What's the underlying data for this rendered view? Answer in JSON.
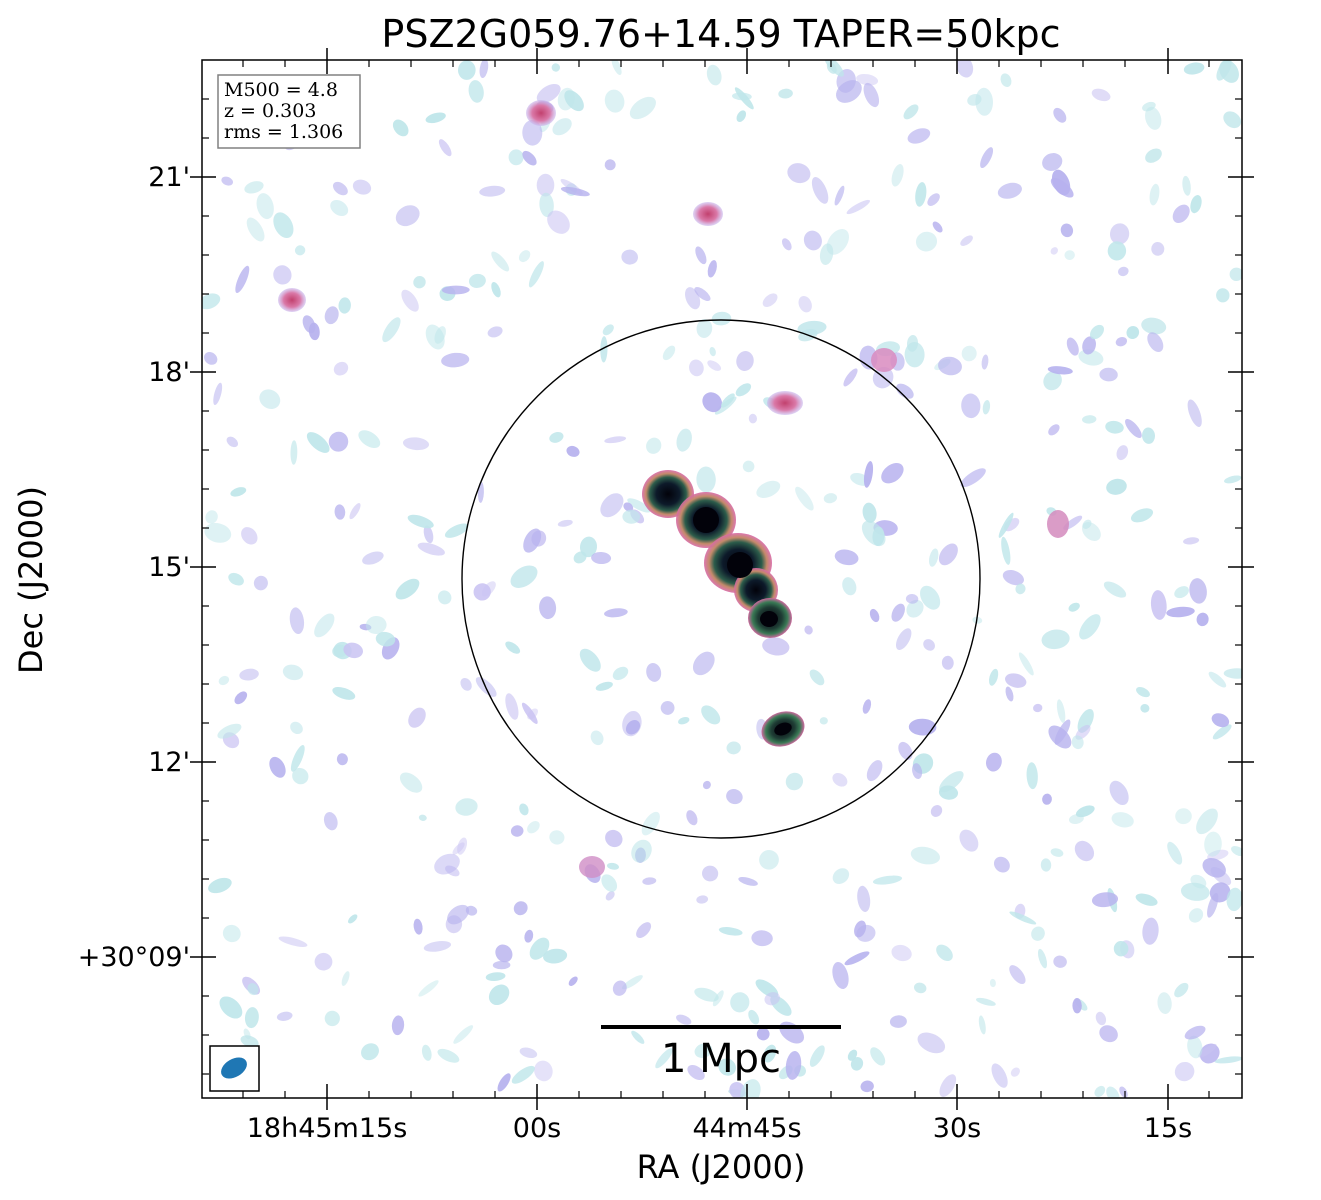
{
  "title": "PSZ2G059.76+14.59 TAPER=50kpc",
  "info_box": {
    "m500": "M500 = 4.8",
    "z": "z = 0.303",
    "rms": "rms = 1.306"
  },
  "x_axis": {
    "label": "RA (J2000)",
    "ticks": [
      "18h45m15s",
      "00s",
      "44m45s",
      "30s",
      "15s"
    ]
  },
  "y_axis": {
    "label": "Dec (J2000)",
    "ticks": [
      "21'",
      "18'",
      "15'",
      "12'",
      "+30°09'"
    ]
  },
  "scale_bar": {
    "label": "1 Mpc"
  },
  "colors": {
    "noise_cyan": "#bfe6ea",
    "noise_purple": "#b7b2ee",
    "noise_pink": "#d66a9f",
    "source_green": "#2c5a4a",
    "source_core": "#05050f",
    "beam": "#1f77b4"
  }
}
